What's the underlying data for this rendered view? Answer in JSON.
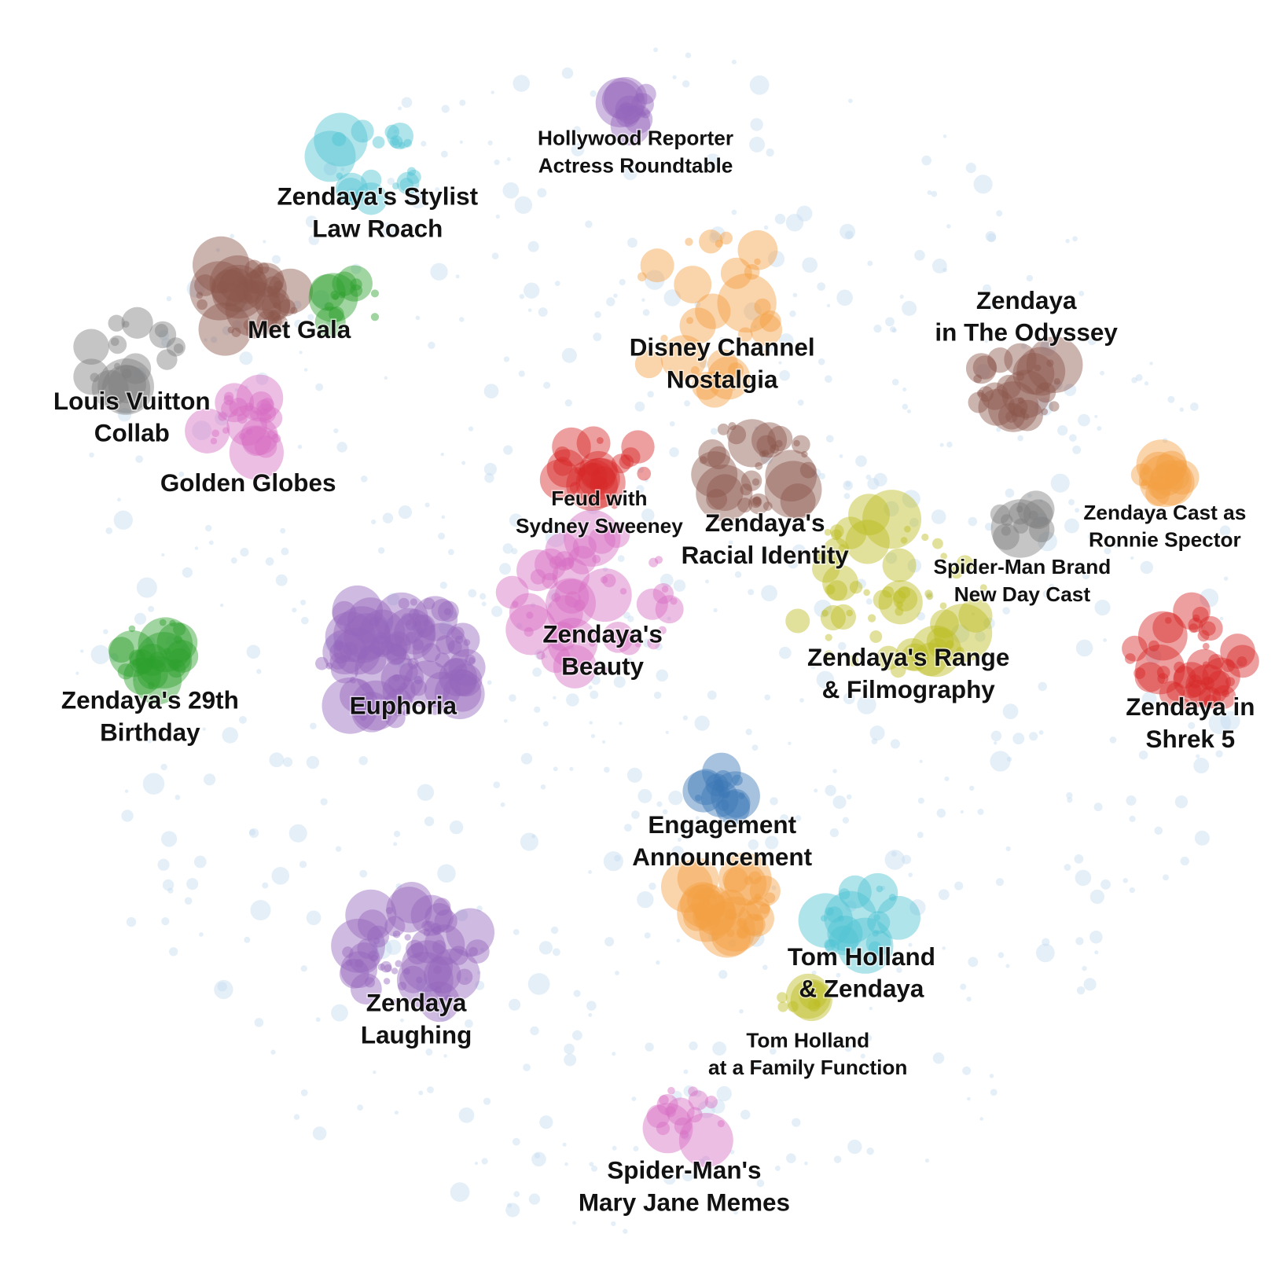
{
  "clusters": [
    {
      "label": [
        "Zendaya's Stylist",
        "Law Roach"
      ]
    },
    {
      "label": [
        "Hollywood Reporter",
        "Actress Roundtable"
      ]
    },
    {
      "label": [
        "Met Gala"
      ]
    },
    {
      "label": [
        "Louis Vuitton",
        "Collab"
      ]
    },
    {
      "label": [
        "Golden Globes"
      ]
    },
    {
      "label": [
        "Disney Channel",
        "Nostalgia"
      ]
    },
    {
      "label": [
        "Zendaya",
        "in The Odyssey"
      ]
    },
    {
      "label": [
        "Feud with",
        "Sydney Sweeney"
      ]
    },
    {
      "label": [
        "Zendaya's",
        "Racial Identity"
      ]
    },
    {
      "label": [
        "Zendaya Cast as",
        "Ronnie Spector"
      ]
    },
    {
      "label": [
        "Spider-Man Brand",
        "New Day Cast"
      ]
    },
    {
      "label": [
        "Zendaya's",
        "Beauty"
      ]
    },
    {
      "label": [
        "Zendaya's Range",
        "& Filmography"
      ]
    },
    {
      "label": [
        "Zendaya in",
        "Shrek 5"
      ]
    },
    {
      "label": [
        "Zendaya's 29th",
        "Birthday"
      ]
    },
    {
      "label": [
        "Euphoria"
      ]
    },
    {
      "label": [
        "Engagement",
        "Announcement"
      ]
    },
    {
      "label": [
        "Tom Holland",
        "& Zendaya"
      ]
    },
    {
      "label": [
        "Zendaya",
        "Laughing"
      ]
    },
    {
      "label": [
        "Tom Holland",
        "at a Family Function"
      ]
    },
    {
      "label": [
        "Spider-Man's",
        "Mary Jane Memes"
      ]
    }
  ]
}
